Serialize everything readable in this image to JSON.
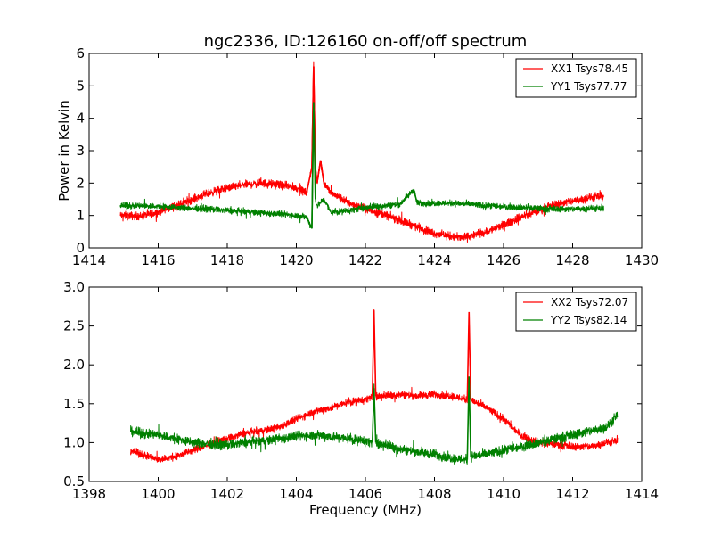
{
  "figure": {
    "title": "ngc2336, ID:126160 on-off/off spectrum"
  },
  "chart_data": [
    {
      "type": "line",
      "title": "ngc2336, ID:126160 on-off/off spectrum",
      "xlabel": "",
      "ylabel": "Power in Kelvin",
      "xlim": [
        1414,
        1430
      ],
      "ylim": [
        0,
        6
      ],
      "xticks": [
        1414,
        1416,
        1418,
        1420,
        1422,
        1424,
        1426,
        1428,
        1430
      ],
      "yticks": [
        0,
        1,
        2,
        3,
        4,
        5,
        6
      ],
      "xtick_labels": [
        "1414",
        "1416",
        "1418",
        "1420",
        "1422",
        "1424",
        "1426",
        "1428",
        "1430"
      ],
      "ytick_labels": [
        "0",
        "1",
        "2",
        "3",
        "4",
        "5",
        "6"
      ],
      "legend_position": "top-right",
      "noise_amplitude": [
        0.18,
        0.14
      ],
      "series": [
        {
          "name": "XX1 Tsys78.45",
          "color": "#ff0000",
          "x": [
            1414.9,
            1415.5,
            1416.0,
            1416.5,
            1417.0,
            1417.5,
            1418.0,
            1418.5,
            1419.0,
            1419.5,
            1420.0,
            1420.3,
            1420.45,
            1420.5,
            1420.55,
            1420.6,
            1420.7,
            1420.8,
            1421.0,
            1421.5,
            1422.0,
            1422.5,
            1423.0,
            1423.5,
            1424.0,
            1424.5,
            1424.8,
            1425.0,
            1425.5,
            1426.0,
            1426.5,
            1427.0,
            1427.5,
            1428.0,
            1428.5,
            1428.9
          ],
          "y": [
            1.0,
            0.98,
            1.1,
            1.3,
            1.5,
            1.7,
            1.85,
            1.95,
            2.0,
            1.95,
            1.85,
            1.7,
            2.5,
            5.6,
            2.5,
            2.0,
            2.7,
            2.0,
            1.7,
            1.4,
            1.2,
            1.05,
            0.85,
            0.65,
            0.45,
            0.35,
            0.32,
            0.35,
            0.5,
            0.7,
            0.95,
            1.15,
            1.35,
            1.45,
            1.55,
            1.6
          ]
        },
        {
          "name": "YY1 Tsys77.77",
          "color": "#008000",
          "x": [
            1414.9,
            1415.5,
            1416.0,
            1416.5,
            1417.0,
            1417.5,
            1418.0,
            1418.5,
            1419.0,
            1419.5,
            1420.0,
            1420.3,
            1420.45,
            1420.5,
            1420.55,
            1420.6,
            1420.8,
            1421.0,
            1421.5,
            1422.0,
            1422.5,
            1423.0,
            1423.4,
            1423.5,
            1424.0,
            1424.5,
            1425.0,
            1425.5,
            1426.0,
            1426.5,
            1427.0,
            1427.5,
            1428.0,
            1428.5,
            1428.9
          ],
          "y": [
            1.3,
            1.3,
            1.28,
            1.25,
            1.22,
            1.2,
            1.15,
            1.12,
            1.08,
            1.05,
            1.0,
            0.95,
            0.6,
            4.5,
            1.5,
            1.3,
            1.5,
            1.1,
            1.15,
            1.25,
            1.3,
            1.35,
            1.8,
            1.38,
            1.38,
            1.38,
            1.35,
            1.3,
            1.28,
            1.25,
            1.22,
            1.2,
            1.2,
            1.22,
            1.2
          ]
        }
      ]
    },
    {
      "type": "line",
      "title": "",
      "xlabel": "Frequency (MHz)",
      "ylabel": "",
      "xlim": [
        1398,
        1414
      ],
      "ylim": [
        0.5,
        3.0
      ],
      "xticks": [
        1398,
        1400,
        1402,
        1404,
        1406,
        1408,
        1410,
        1412,
        1414
      ],
      "yticks": [
        0.5,
        1.0,
        1.5,
        2.0,
        2.5,
        3.0
      ],
      "xtick_labels": [
        "1398",
        "1400",
        "1402",
        "1404",
        "1406",
        "1408",
        "1410",
        "1412",
        "1414"
      ],
      "ytick_labels": [
        "0.5",
        "1.0",
        "1.5",
        "2.0",
        "2.5",
        "3.0"
      ],
      "legend_position": "top-right",
      "noise_amplitude": [
        0.07,
        0.09
      ],
      "series": [
        {
          "name": "XX2 Tsys72.07",
          "color": "#ff0000",
          "x": [
            1399.2,
            1399.5,
            1400.0,
            1400.5,
            1401.0,
            1401.5,
            1402.0,
            1402.5,
            1403.0,
            1403.5,
            1404.0,
            1404.5,
            1405.0,
            1405.5,
            1406.0,
            1406.2,
            1406.25,
            1406.3,
            1406.5,
            1407.0,
            1407.5,
            1408.0,
            1408.5,
            1408.95,
            1409.0,
            1409.05,
            1409.5,
            1410.0,
            1410.5,
            1411.0,
            1411.5,
            1412.0,
            1412.5,
            1413.0,
            1413.3
          ],
          "y": [
            0.9,
            0.85,
            0.78,
            0.82,
            0.9,
            0.98,
            1.05,
            1.12,
            1.15,
            1.2,
            1.3,
            1.4,
            1.45,
            1.52,
            1.55,
            1.6,
            2.7,
            1.6,
            1.6,
            1.62,
            1.6,
            1.62,
            1.6,
            1.55,
            2.68,
            1.55,
            1.45,
            1.3,
            1.1,
            1.0,
            0.98,
            0.95,
            0.95,
            1.0,
            1.02
          ]
        },
        {
          "name": "YY2 Tsys82.14",
          "color": "#008000",
          "x": [
            1399.2,
            1399.5,
            1400.0,
            1400.5,
            1401.0,
            1401.5,
            1402.0,
            1402.5,
            1403.0,
            1403.5,
            1404.0,
            1404.5,
            1405.0,
            1405.5,
            1406.0,
            1406.2,
            1406.25,
            1406.3,
            1406.5,
            1407.0,
            1407.5,
            1408.0,
            1408.5,
            1408.95,
            1409.0,
            1409.05,
            1409.5,
            1410.0,
            1410.5,
            1411.0,
            1411.5,
            1412.0,
            1412.5,
            1413.0,
            1413.3
          ],
          "y": [
            1.15,
            1.12,
            1.1,
            1.05,
            1.0,
            0.98,
            0.97,
            1.0,
            1.02,
            1.05,
            1.08,
            1.1,
            1.08,
            1.05,
            1.02,
            1.0,
            1.7,
            1.0,
            0.98,
            0.92,
            0.88,
            0.85,
            0.8,
            0.78,
            1.85,
            0.82,
            0.85,
            0.9,
            0.95,
            1.0,
            1.05,
            1.1,
            1.15,
            1.2,
            1.35
          ]
        }
      ]
    }
  ]
}
